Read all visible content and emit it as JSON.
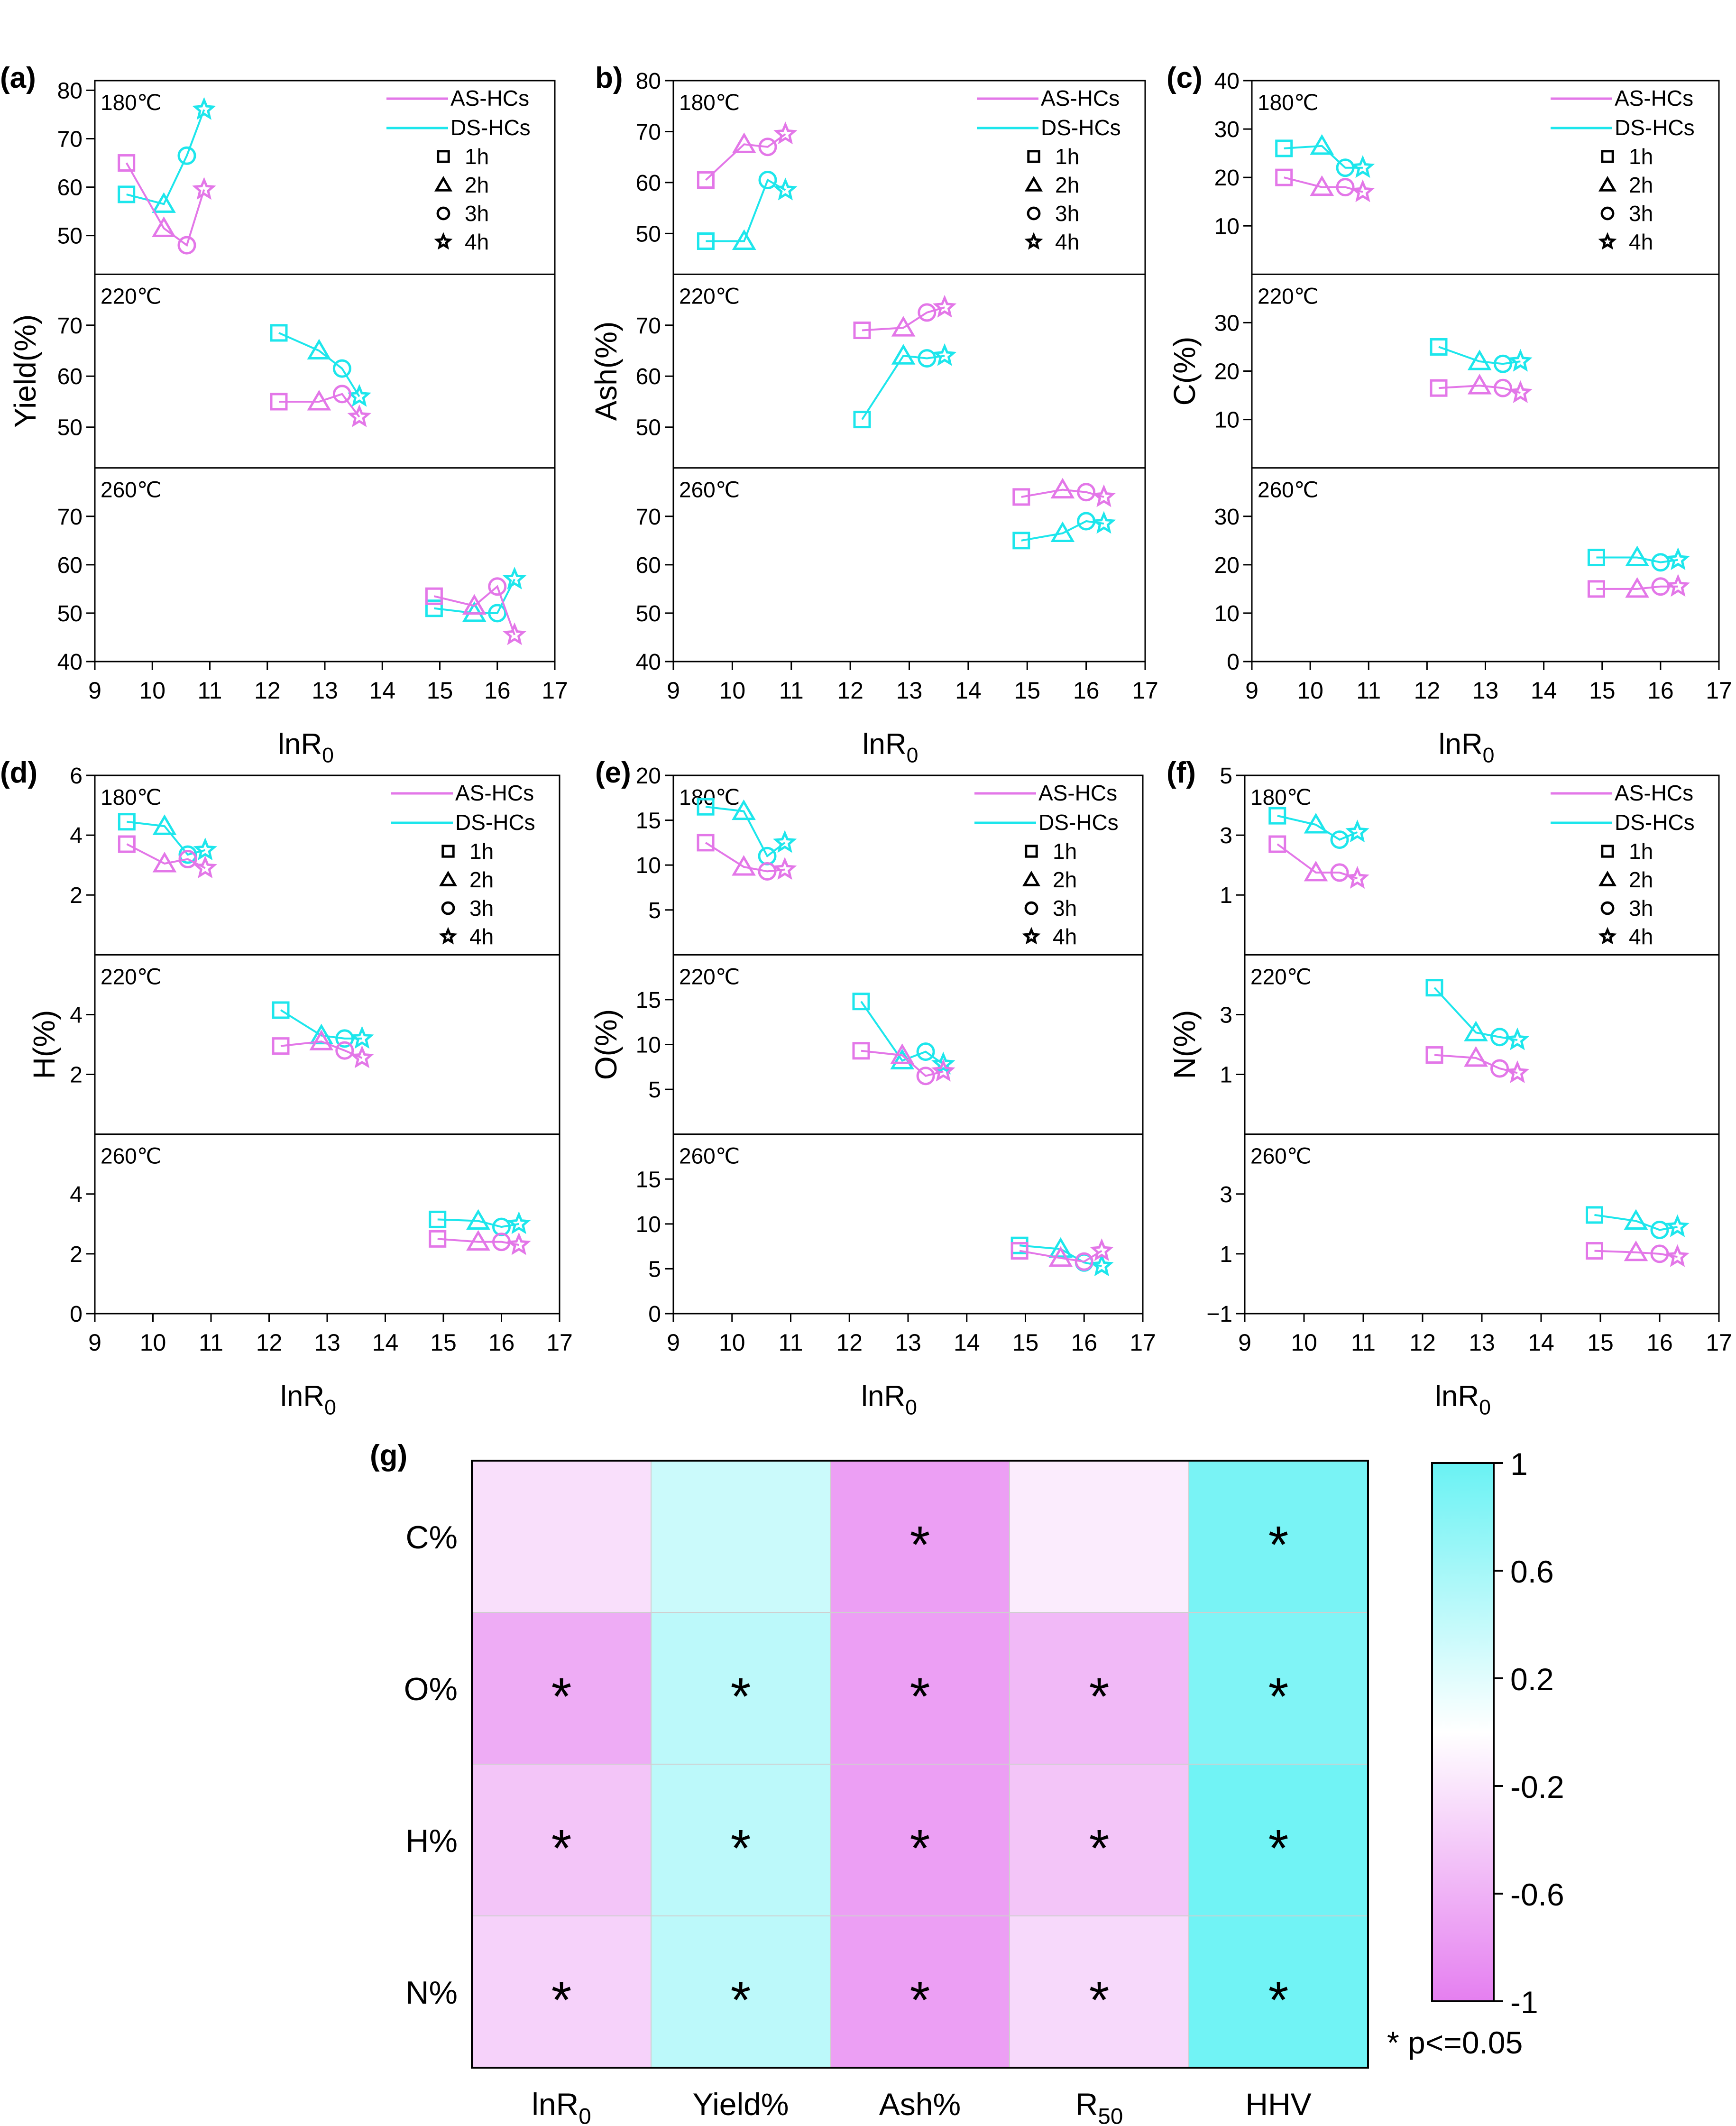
{
  "colors": {
    "as": "#e377e8",
    "ds": "#1de6ec",
    "cmap_low": "#e57ff0",
    "cmap_mid": "#ffffff",
    "cmap_high": "#6af2f4"
  },
  "xaxis": {
    "label_main": "lnR",
    "label_sub": "0",
    "ticks": [
      "9",
      "10",
      "11",
      "12",
      "13",
      "14",
      "15",
      "16",
      "17"
    ],
    "range": [
      9,
      17
    ]
  },
  "legend": {
    "series": [
      "AS-HCs",
      "DS-HCs"
    ],
    "times": [
      "1h",
      "2h",
      "3h",
      "4h"
    ],
    "markers": [
      "square",
      "triangle",
      "circle",
      "star"
    ]
  },
  "temps": [
    "180℃",
    "220℃",
    "260℃"
  ],
  "chart_data": [
    {
      "type": "scatter",
      "panel": "(a)",
      "ylabel": "Yield(%)",
      "bands": [
        {
          "temp": "180℃",
          "ylim": [
            42,
            82
          ],
          "ticks": [
            "50",
            "60",
            "70",
            "80"
          ],
          "as_x": [
            9.55,
            10.2,
            10.6,
            10.9
          ],
          "as_y": [
            65,
            51.5,
            48,
            59.5
          ],
          "ds_x": [
            9.55,
            10.2,
            10.6,
            10.9
          ],
          "ds_y": [
            58.5,
            56.5,
            66.5,
            76
          ]
        },
        {
          "temp": "220℃",
          "ylim": [
            42,
            80
          ],
          "ticks": [
            "50",
            "60",
            "70"
          ],
          "as_x": [
            12.2,
            12.9,
            13.3,
            13.6
          ],
          "as_y": [
            55,
            55,
            56.5,
            52
          ],
          "ds_x": [
            12.2,
            12.9,
            13.3,
            13.6
          ],
          "ds_y": [
            68.5,
            65,
            61.5,
            56
          ]
        },
        {
          "temp": "260℃",
          "ylim": [
            40,
            80
          ],
          "ticks": [
            "40",
            "50",
            "60",
            "70"
          ],
          "as_x": [
            14.9,
            15.6,
            16.0,
            16.3
          ],
          "as_y": [
            53.5,
            51.5,
            55.5,
            45.5
          ],
          "ds_x": [
            14.9,
            15.6,
            16.0,
            16.3
          ],
          "ds_y": [
            51,
            50,
            50,
            57
          ]
        }
      ]
    },
    {
      "type": "scatter",
      "panel": "b)",
      "ylabel": "Ash(%)",
      "bands": [
        {
          "temp": "180℃",
          "ylim": [
            42,
            80
          ],
          "ticks": [
            "50",
            "60",
            "70",
            "80"
          ],
          "as_x": [
            9.55,
            10.2,
            10.6,
            10.9
          ],
          "as_y": [
            60.5,
            67.5,
            67,
            69.5
          ],
          "ds_x": [
            9.55,
            10.2,
            10.6,
            10.9
          ],
          "ds_y": [
            48.5,
            48.5,
            60.5,
            58.5
          ]
        },
        {
          "temp": "220℃",
          "ylim": [
            42,
            80
          ],
          "ticks": [
            "50",
            "60",
            "70"
          ],
          "as_x": [
            12.2,
            12.9,
            13.3,
            13.6
          ],
          "as_y": [
            69,
            69.5,
            72.5,
            73.5
          ],
          "ds_x": [
            12.2,
            12.9,
            13.3,
            13.6
          ],
          "ds_y": [
            51.5,
            64,
            63.5,
            64
          ]
        },
        {
          "temp": "260℃",
          "ylim": [
            40,
            80
          ],
          "ticks": [
            "40",
            "50",
            "60",
            "70"
          ],
          "as_x": [
            14.9,
            15.6,
            16.0,
            16.3
          ],
          "as_y": [
            74,
            75.5,
            75,
            74
          ],
          "ds_x": [
            14.9,
            15.6,
            16.0,
            16.3
          ],
          "ds_y": [
            65,
            66.5,
            69,
            68.5
          ]
        }
      ]
    },
    {
      "type": "scatter",
      "panel": "(c)",
      "ylabel": "C(%)",
      "bands": [
        {
          "temp": "180℃",
          "ylim": [
            0,
            40
          ],
          "ticks": [
            "10",
            "20",
            "30",
            "40"
          ],
          "as_x": [
            9.55,
            10.2,
            10.6,
            10.9
          ],
          "as_y": [
            20,
            18,
            18,
            17
          ],
          "ds_x": [
            9.55,
            10.2,
            10.6,
            10.9
          ],
          "ds_y": [
            26,
            26.5,
            22,
            22
          ]
        },
        {
          "temp": "220℃",
          "ylim": [
            0,
            40
          ],
          "ticks": [
            "10",
            "20",
            "30"
          ],
          "as_x": [
            12.2,
            12.9,
            13.3,
            13.6
          ],
          "as_y": [
            16.5,
            17,
            16.5,
            15.5
          ],
          "ds_x": [
            12.2,
            12.9,
            13.3,
            13.6
          ],
          "ds_y": [
            25,
            22,
            21.5,
            22
          ]
        },
        {
          "temp": "260℃",
          "ylim": [
            0,
            40
          ],
          "ticks": [
            "0",
            "10",
            "20",
            "30"
          ],
          "as_x": [
            14.9,
            15.6,
            16.0,
            16.3
          ],
          "as_y": [
            15,
            15,
            15.5,
            15.5
          ],
          "ds_x": [
            14.9,
            15.6,
            16.0,
            16.3
          ],
          "ds_y": [
            21.5,
            21.5,
            20.5,
            21
          ]
        }
      ]
    },
    {
      "type": "scatter",
      "panel": "(d)",
      "ylabel": "H(%)",
      "bands": [
        {
          "temp": "180℃",
          "ylim": [
            0,
            6
          ],
          "ticks": [
            "2",
            "4",
            "6"
          ],
          "as_x": [
            9.55,
            10.2,
            10.6,
            10.9
          ],
          "as_y": [
            3.7,
            3.05,
            3.2,
            2.9
          ],
          "ds_x": [
            9.55,
            10.2,
            10.6,
            10.9
          ],
          "ds_y": [
            4.45,
            4.3,
            3.35,
            3.5
          ]
        },
        {
          "temp": "220℃",
          "ylim": [
            0,
            6
          ],
          "ticks": [
            "2",
            "4"
          ],
          "as_x": [
            12.2,
            12.9,
            13.3,
            13.6
          ],
          "as_y": [
            2.95,
            3.1,
            2.8,
            2.55
          ],
          "ds_x": [
            12.2,
            12.9,
            13.3,
            13.6
          ],
          "ds_y": [
            4.15,
            3.3,
            3.2,
            3.2
          ]
        },
        {
          "temp": "260℃",
          "ylim": [
            0,
            6
          ],
          "ticks": [
            "0",
            "2",
            "4"
          ],
          "as_x": [
            14.9,
            15.6,
            16.0,
            16.3
          ],
          "as_y": [
            2.5,
            2.4,
            2.4,
            2.3
          ],
          "ds_x": [
            14.9,
            15.6,
            16.0,
            16.3
          ],
          "ds_y": [
            3.15,
            3.1,
            2.9,
            3.0
          ]
        }
      ]
    },
    {
      "type": "scatter",
      "panel": "(e)",
      "ylabel": "O(%)",
      "bands": [
        {
          "temp": "180℃",
          "ylim": [
            0,
            20
          ],
          "ticks": [
            "5",
            "10",
            "15",
            "20"
          ],
          "as_x": [
            9.55,
            10.2,
            10.6,
            10.9
          ],
          "as_y": [
            12.5,
            9.8,
            9.3,
            9.5
          ],
          "ds_x": [
            9.55,
            10.2,
            10.6,
            10.9
          ],
          "ds_y": [
            16.5,
            16,
            11,
            12.5
          ]
        },
        {
          "temp": "220℃",
          "ylim": [
            0,
            20
          ],
          "ticks": [
            "5",
            "10",
            "15"
          ],
          "as_x": [
            12.2,
            12.9,
            13.3,
            13.6
          ],
          "as_y": [
            9.3,
            8.8,
            6.5,
            7.0
          ],
          "ds_x": [
            12.2,
            12.9,
            13.3,
            13.6
          ],
          "ds_y": [
            14.8,
            8.2,
            9.2,
            7.8
          ]
        },
        {
          "temp": "260℃",
          "ylim": [
            0,
            20
          ],
          "ticks": [
            "0",
            "5",
            "10",
            "15"
          ],
          "as_x": [
            14.9,
            15.6,
            16.0,
            16.3
          ],
          "as_y": [
            7.0,
            6.2,
            5.8,
            7.0
          ],
          "ds_x": [
            14.9,
            15.6,
            16.0,
            16.3
          ],
          "ds_y": [
            7.6,
            7.2,
            5.7,
            5.3
          ]
        }
      ]
    },
    {
      "type": "scatter",
      "panel": "(f)",
      "ylabel": "N(%)",
      "bands": [
        {
          "temp": "180℃",
          "ylim": [
            -1,
            5
          ],
          "ticks": [
            "1",
            "3",
            "5"
          ],
          "as_x": [
            9.55,
            10.2,
            10.6,
            10.9
          ],
          "as_y": [
            2.7,
            1.75,
            1.75,
            1.55
          ],
          "ds_x": [
            9.55,
            10.2,
            10.6,
            10.9
          ],
          "ds_y": [
            3.65,
            3.35,
            2.85,
            3.1
          ]
        },
        {
          "temp": "220℃",
          "ylim": [
            -1,
            5
          ],
          "ticks": [
            "1",
            "3"
          ],
          "as_x": [
            12.2,
            12.9,
            13.3,
            13.6
          ],
          "as_y": [
            1.65,
            1.55,
            1.2,
            1.05
          ],
          "ds_x": [
            12.2,
            12.9,
            13.3,
            13.6
          ],
          "ds_y": [
            3.9,
            2.4,
            2.25,
            2.15
          ]
        },
        {
          "temp": "260℃",
          "ylim": [
            -1,
            5
          ],
          "ticks": [
            "−1",
            "1",
            "3"
          ],
          "as_x": [
            14.9,
            15.6,
            16.0,
            16.3
          ],
          "as_y": [
            1.1,
            1.05,
            1.0,
            0.9
          ],
          "ds_x": [
            14.9,
            15.6,
            16.0,
            16.3
          ],
          "ds_y": [
            2.3,
            2.1,
            1.8,
            1.9
          ]
        }
      ]
    },
    {
      "type": "heatmap",
      "panel": "(g)",
      "rows": [
        "C%",
        "O%",
        "H%",
        "N%"
      ],
      "cols": [
        {
          "main": "lnR",
          "sub": "0"
        },
        {
          "main": "Yield%",
          "sub": ""
        },
        {
          "main": "Ash%",
          "sub": ""
        },
        {
          "main": "R",
          "sub": "50"
        },
        {
          "main": "HHV",
          "sub": ""
        }
      ],
      "values": [
        [
          -0.25,
          0.35,
          -0.75,
          -0.15,
          0.9
        ],
        [
          -0.65,
          0.45,
          -0.75,
          -0.55,
          0.85
        ],
        [
          -0.45,
          0.45,
          -0.75,
          -0.45,
          0.95
        ],
        [
          -0.35,
          0.45,
          -0.75,
          -0.3,
          0.95
        ]
      ],
      "significant": [
        [
          false,
          false,
          true,
          false,
          true
        ],
        [
          true,
          true,
          true,
          true,
          true
        ],
        [
          true,
          true,
          true,
          true,
          true
        ],
        [
          true,
          true,
          true,
          true,
          true
        ]
      ],
      "colorbar_ticks": [
        "1",
        "0.6",
        "0.2",
        "-0.2",
        "-0.6",
        "-1"
      ],
      "star_symbol": "*",
      "note": "* p<=0.05"
    }
  ]
}
